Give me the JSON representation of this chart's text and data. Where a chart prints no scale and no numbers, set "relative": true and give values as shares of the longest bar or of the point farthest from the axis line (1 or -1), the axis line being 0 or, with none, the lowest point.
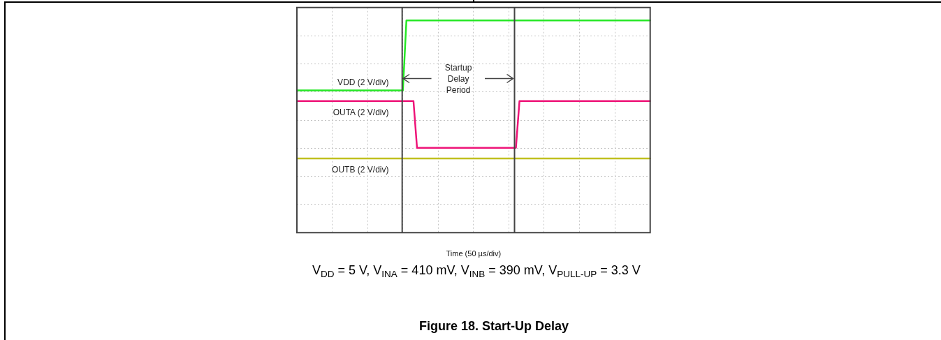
{
  "chart_data": {
    "type": "line",
    "title": "Figure 18. Start-Up Delay",
    "xlabel": "Time (50 µs/div)",
    "annotations": [
      "Startup Delay Period",
      "V$_{DD}$ = 5 V, V$_{INA}$ = 410 mV, V$_{INB}$ = 390 mV, V$_{PULL-UP}$ = 3.3 V"
    ],
    "relative": true,
    "tick_labels": false,
    "grid": true,
    "categories": [
      null,
      null,
      null,
      null,
      null,
      null,
      null,
      null,
      null,
      null,
      null,
      null,
      null,
      null,
      null,
      null,
      null,
      null,
      null,
      null,
      null,
      null,
      null,
      null,
      null,
      null,
      null,
      null,
      null,
      null,
      null,
      null,
      null,
      null,
      null,
      null,
      null,
      null,
      null,
      null,
      null,
      null,
      null,
      null,
      null,
      null,
      null,
      null,
      null,
      null,
      null,
      null,
      null,
      null,
      null,
      null,
      null,
      null,
      null,
      null,
      null,
      null,
      null,
      null,
      null,
      null,
      null,
      null,
      null,
      null,
      null,
      null,
      null,
      null,
      null,
      null,
      null,
      null,
      null,
      null,
      null,
      null,
      null,
      null,
      null,
      null,
      null,
      null,
      null,
      null,
      null,
      null,
      null,
      null,
      null,
      null,
      null,
      null,
      null,
      null,
      null
    ],
    "series": [
      {
        "name": "VDD (2 V/div)",
        "color": "#25e825",
        "values": [
          0.67,
          0.67,
          0.67,
          0.67,
          0.67,
          0.67,
          0.67,
          0.67,
          0.67,
          0.67,
          0.67,
          0.67,
          0.67,
          0.67,
          0.67,
          0.67,
          0.67,
          0.67,
          0.67,
          0.67,
          0.67,
          0.67,
          0.67,
          0.67,
          0.67,
          0.67,
          0.67,
          0.67,
          0.67,
          0.67,
          0.67,
          1,
          1,
          1,
          1,
          1,
          1,
          1,
          1,
          1,
          1,
          1,
          1,
          1,
          1,
          1,
          1,
          1,
          1,
          1,
          1,
          1,
          1,
          1,
          1,
          1,
          1,
          1,
          1,
          1,
          1,
          1,
          1,
          1,
          1,
          1,
          1,
          1,
          1,
          1,
          1,
          1,
          1,
          1,
          1,
          1,
          1,
          1,
          1,
          1,
          1,
          1,
          1,
          1,
          1,
          1,
          1,
          1,
          1,
          1,
          1,
          1,
          1,
          1,
          1,
          1,
          1,
          1,
          1,
          1,
          1
        ]
      },
      {
        "name": "OUTA (2 V/div)",
        "color": "#ee1478",
        "values": [
          0.62,
          0.62,
          0.62,
          0.62,
          0.62,
          0.62,
          0.62,
          0.62,
          0.62,
          0.62,
          0.62,
          0.62,
          0.62,
          0.62,
          0.62,
          0.62,
          0.62,
          0.62,
          0.62,
          0.62,
          0.62,
          0.62,
          0.62,
          0.62,
          0.62,
          0.62,
          0.62,
          0.62,
          0.62,
          0.62,
          0.62,
          0.62,
          0.62,
          0.62,
          0.4,
          0.4,
          0.4,
          0.4,
          0.4,
          0.4,
          0.4,
          0.4,
          0.4,
          0.4,
          0.4,
          0.4,
          0.4,
          0.4,
          0.4,
          0.4,
          0.4,
          0.4,
          0.4,
          0.4,
          0.4,
          0.4,
          0.4,
          0.4,
          0.4,
          0.4,
          0.4,
          0.4,
          0.4,
          0.62,
          0.62,
          0.62,
          0.62,
          0.62,
          0.62,
          0.62,
          0.62,
          0.62,
          0.62,
          0.62,
          0.62,
          0.62,
          0.62,
          0.62,
          0.62,
          0.62,
          0.62,
          0.62,
          0.62,
          0.62,
          0.62,
          0.62,
          0.62,
          0.62,
          0.62,
          0.62,
          0.62,
          0.62,
          0.62,
          0.62,
          0.62,
          0.62,
          0.62,
          0.62,
          0.62,
          0.62,
          0.62
        ]
      },
      {
        "name": "OUTB (2 V/div)",
        "color": "#c0c020",
        "values": [
          0.35,
          0.35,
          0.35,
          0.35,
          0.35,
          0.35,
          0.35,
          0.35,
          0.35,
          0.35,
          0.35,
          0.35,
          0.35,
          0.35,
          0.35,
          0.35,
          0.35,
          0.35,
          0.35,
          0.35,
          0.35,
          0.35,
          0.35,
          0.35,
          0.35,
          0.35,
          0.35,
          0.35,
          0.35,
          0.35,
          0.35,
          0.35,
          0.35,
          0.35,
          0.35,
          0.35,
          0.35,
          0.35,
          0.35,
          0.35,
          0.35,
          0.35,
          0.35,
          0.35,
          0.35,
          0.35,
          0.35,
          0.35,
          0.35,
          0.35,
          0.35,
          0.35,
          0.35,
          0.35,
          0.35,
          0.35,
          0.35,
          0.35,
          0.35,
          0.35,
          0.35,
          0.35,
          0.35,
          0.35,
          0.35,
          0.35,
          0.35,
          0.35,
          0.35,
          0.35,
          0.35,
          0.35,
          0.35,
          0.35,
          0.35,
          0.35,
          0.35,
          0.35,
          0.35,
          0.35,
          0.35,
          0.35,
          0.35,
          0.35,
          0.35,
          0.35,
          0.35,
          0.35,
          0.35,
          0.35,
          0.35,
          0.35,
          0.35,
          0.35,
          0.35,
          0.35,
          0.35,
          0.35,
          0.35,
          0.35,
          0.35
        ]
      }
    ]
  }
}
